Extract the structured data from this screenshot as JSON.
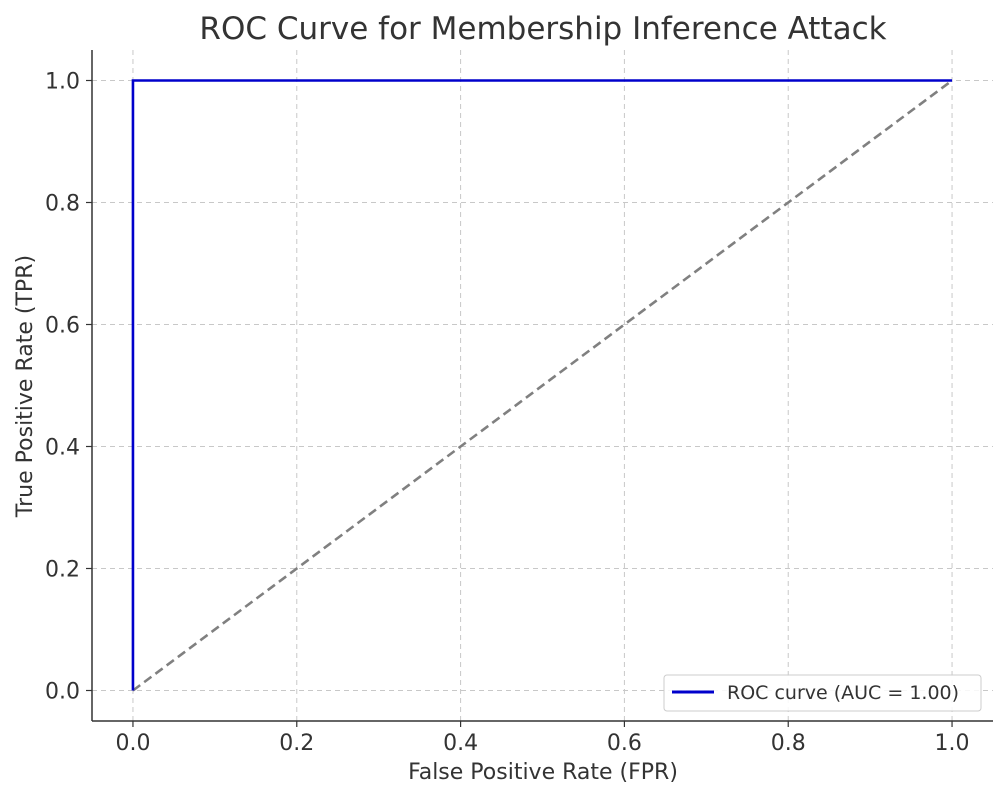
{
  "chart_data": {
    "type": "line",
    "title": "ROC Curve for Membership Inference Attack",
    "xlabel": "False Positive Rate (FPR)",
    "ylabel": "True Positive Rate (TPR)",
    "xlim": [
      -0.05,
      1.05
    ],
    "ylim": [
      -0.05,
      1.05
    ],
    "xticks": [
      "0.0",
      "0.2",
      "0.4",
      "0.6",
      "0.8",
      "1.0"
    ],
    "yticks": [
      "0.0",
      "0.2",
      "0.4",
      "0.6",
      "0.8",
      "1.0"
    ],
    "grid": true,
    "grid_style": "dashed",
    "legend_position": "bottom-right",
    "series": [
      {
        "name": "ROC curve (AUC = 1.00)",
        "color": "#0000cc",
        "style": "solid",
        "x": [
          0.0,
          0.0,
          1.0
        ],
        "y": [
          0.0,
          1.0,
          1.0
        ]
      },
      {
        "color": "#808080",
        "style": "dashed",
        "x": [
          0.0,
          1.0
        ],
        "y": [
          0.0,
          1.0
        ]
      }
    ]
  }
}
